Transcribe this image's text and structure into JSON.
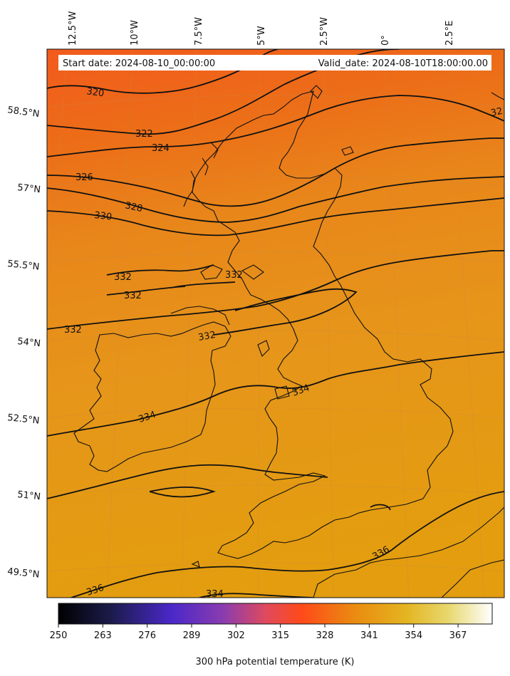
{
  "header": {
    "start_date": "Start date: 2024-08-10_00:00:00",
    "valid_date": "Valid_date: 2024-08-10T18:00:00.00"
  },
  "map": {
    "region": "British Isles",
    "projection": "conic",
    "longitude_labels": [
      "12.5°W",
      "10°W",
      "7.5°W",
      "5°W",
      "2.5°W",
      "0°",
      "2.5°E"
    ],
    "latitude_labels": [
      "58.5°N",
      "57°N",
      "55.5°N",
      "54°N",
      "52.5°N",
      "51°N",
      "49.5°N"
    ],
    "field_colors": {
      "north": "#f25a1c",
      "mid": "#e88a12",
      "south": "#e39a0e"
    }
  },
  "contours": {
    "labels": [
      "320",
      "322",
      "324",
      "326",
      "328",
      "330",
      "332",
      "332",
      "332",
      "332",
      "332",
      "334",
      "334",
      "334",
      "336",
      "336",
      "32"
    ]
  },
  "colorbar": {
    "ticks": [
      "250",
      "263",
      "276",
      "289",
      "302",
      "315",
      "328",
      "341",
      "354",
      "367"
    ],
    "min": 250,
    "max": 377,
    "colormap": "CMRmap",
    "label": "300 hPa potential temperature (K)"
  }
}
